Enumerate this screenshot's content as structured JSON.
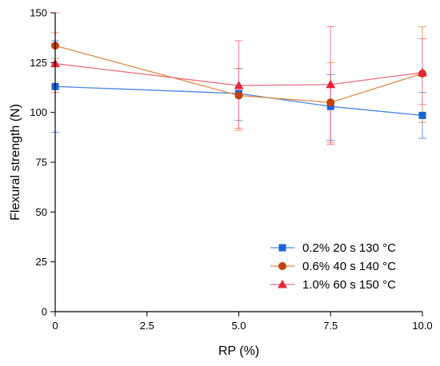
{
  "chart_data": {
    "type": "line",
    "xlabel": "RP (%)",
    "ylabel": "Flexural strength (N)",
    "xlim": [
      0,
      10
    ],
    "ylim": [
      0,
      150
    ],
    "xticks": [
      0,
      2.5,
      5,
      7.5,
      10
    ],
    "xtick_labels": [
      "0",
      "2.5",
      "5.0",
      "7.5",
      "10.0"
    ],
    "yticks": [
      0,
      25,
      50,
      75,
      100,
      125,
      150
    ],
    "ytick_labels": [
      "0",
      "25",
      "50",
      "75",
      "100",
      "125",
      "150"
    ],
    "grid": false,
    "legend_position": "bottom-right",
    "x": [
      0,
      5,
      7.5,
      10
    ],
    "series": [
      {
        "name": "0.2% 20 s 130 °C",
        "marker": "square",
        "color": "#1f5fd6",
        "line_color": "#4a86e8",
        "values": [
          113,
          109.5,
          103,
          98.5
        ],
        "err_low": [
          90,
          96,
          86,
          87
        ],
        "err_high": [
          136,
          122,
          119,
          110
        ]
      },
      {
        "name": "0.6% 40 s 140 °C",
        "marker": "circle",
        "color": "#c2410c",
        "line_color": "#e08a4a",
        "values": [
          133.5,
          108.5,
          105,
          119.5
        ],
        "err_low": [
          127,
          91,
          85,
          95
        ],
        "err_high": [
          140,
          122,
          125,
          143
        ]
      },
      {
        "name": "1.0% 60 s 150 °C",
        "marker": "triangle",
        "color": "#e8253f",
        "line_color": "#f06b80",
        "values": [
          124.5,
          113.5,
          114,
          120
        ],
        "err_low": [
          110,
          92,
          84,
          104
        ],
        "err_high": [
          150,
          136,
          143,
          137
        ]
      }
    ]
  }
}
